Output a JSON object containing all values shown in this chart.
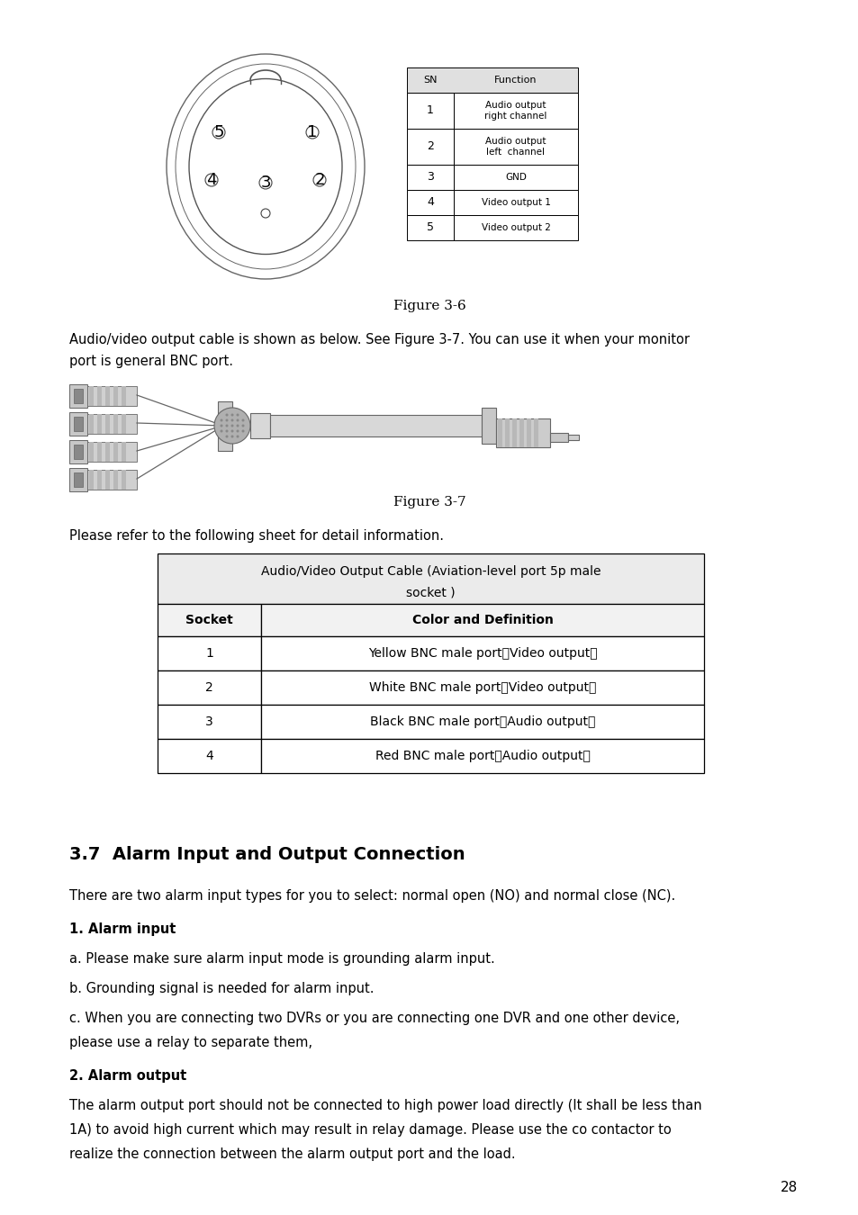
{
  "bg_color": "#ffffff",
  "text_color": "#000000",
  "figure36_caption": "Figure 3-6",
  "figure37_caption": "Figure 3-7",
  "table1_headers": [
    "SN",
    "Function"
  ],
  "table1_rows": [
    [
      "1",
      "Audio output\nright channel"
    ],
    [
      "2",
      "Audio output\nleft  channel"
    ],
    [
      "3",
      "GND"
    ],
    [
      "4",
      "Video output 1"
    ],
    [
      "5",
      "Video output 2"
    ]
  ],
  "table2_header1": "Audio/Video Output Cable (Aviation-level port 5p male",
  "table2_header2": "socket )",
  "table2_col_headers": [
    "Socket",
    "Color and Definition"
  ],
  "table2_rows": [
    [
      "1",
      "Yellow BNC male port（Video output）"
    ],
    [
      "2",
      "White BNC male port（Video output）"
    ],
    [
      "3",
      "Black BNC male port（Audio output）"
    ],
    [
      "4",
      "Red BNC male port（Audio output）"
    ]
  ],
  "body_text1": "Audio/video output cable is shown as below. See Figure 3-7. You can use it when your monitor",
  "body_text2": "port is general BNC port.",
  "pre_table_text": "Please refer to the following sheet for detail information.",
  "section_title": "3.7  Alarm Input and Output Connection",
  "para1": "There are two alarm input types for you to select: normal open (NO) and normal close (NC).",
  "bold1": "1. Alarm input",
  "item_a": "a. Please make sure alarm input mode is grounding alarm input.",
  "item_b": "b. Grounding signal is needed for alarm input.",
  "item_c1": "c. When you are connecting two DVRs or you are connecting one DVR and one other device,",
  "item_c2": "please use a relay to separate them,",
  "bold2": "2. Alarm output",
  "para2_1": "The alarm output port should not be connected to high power load directly (It shall be less than",
  "para2_2": "1A) to avoid high current which may result in relay damage. Please use the co contactor to",
  "para2_3": "realize the connection between the alarm output port and the load.",
  "page_number": "28"
}
